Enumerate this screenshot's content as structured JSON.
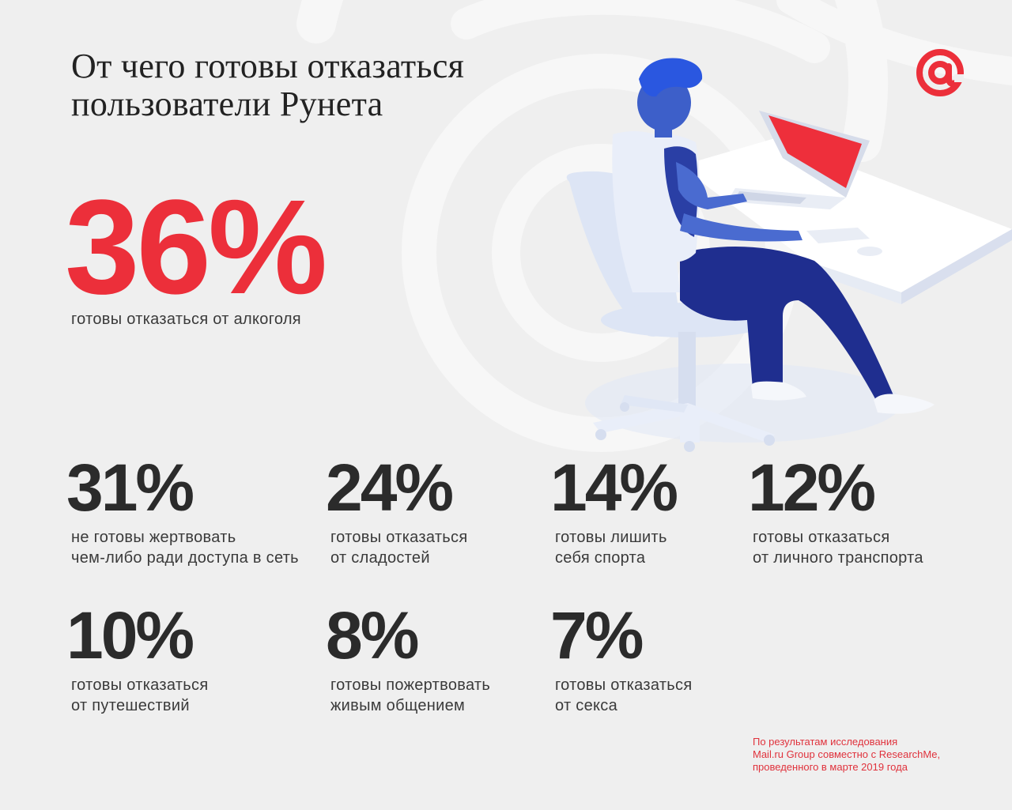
{
  "title": "От чего готовы отказаться\nпользователи Рунета",
  "logo": {
    "icon": "at-sign-icon",
    "color": "#ec2f3a"
  },
  "colors": {
    "accent": "#ec2f3a",
    "text": "#2b2b2b",
    "background": "#efefef"
  },
  "hero": {
    "value": "36%",
    "caption": "готовы отказаться от алкоголя"
  },
  "chart_data": {
    "type": "table",
    "unit": "%",
    "items": [
      {
        "value": 36,
        "label": "готовы отказаться от алкоголя"
      },
      {
        "value": 31,
        "label": "не готовы жертвовать чем-либо ради доступа в сеть"
      },
      {
        "value": 24,
        "label": "готовы отказаться от сладостей"
      },
      {
        "value": 14,
        "label": "готовы лишить себя спорта"
      },
      {
        "value": 12,
        "label": "готовы отказаться от личного транспорта"
      },
      {
        "value": 10,
        "label": "готовы отказаться от путешествий"
      },
      {
        "value": 8,
        "label": "готовы пожертвовать живым общением"
      },
      {
        "value": 7,
        "label": "готовы отказаться от секса"
      }
    ]
  },
  "stats": [
    {
      "value": "31%",
      "caption": "не готовы жертвовать\nчем-либо ради доступа в сеть"
    },
    {
      "value": "24%",
      "caption": "готовы отказаться\nот сладостей"
    },
    {
      "value": "14%",
      "caption": "готовы лишить\nсебя спорта"
    },
    {
      "value": "12%",
      "caption": "готовы отказаться\nот личного транспорта"
    },
    {
      "value": "10%",
      "caption": "готовы отказаться\nот путешествий"
    },
    {
      "value": "8%",
      "caption": "готовы пожертвовать\nживым общением"
    },
    {
      "value": "7%",
      "caption": "готовы отказаться\nот секса"
    }
  ],
  "source": "По результатам исследования\nMail.ru Group совместно с ResearchMe,\nпроведенного в марте 2019 года"
}
